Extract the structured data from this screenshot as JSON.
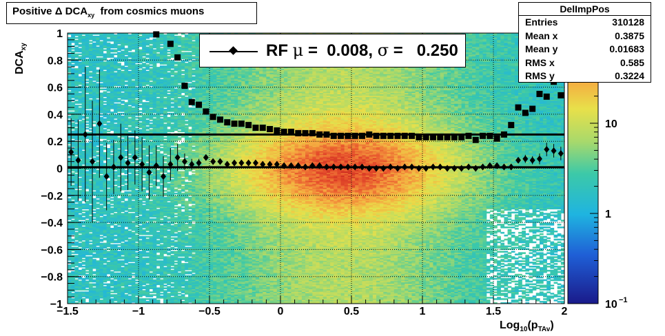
{
  "title": "Positive Δ DCA",
  "title_sub": "xy",
  "title_rest": "  from cosmics muons",
  "stats": {
    "name": "DelImpPos",
    "rows": [
      {
        "key": "Entries",
        "value": "310128"
      },
      {
        "key": "Mean x",
        "value": "0.3875"
      },
      {
        "key": "Mean y",
        "value": "0.01683"
      },
      {
        "key": "RMS x",
        "value": "0.585"
      },
      {
        "key": "RMS y",
        "value": "0.3224"
      }
    ]
  },
  "legend": {
    "prefix": "RF ",
    "mu": "μ",
    "mid": " =  0.008, ",
    "sigma": "σ",
    "suffix": " =   0.250"
  },
  "colors": {
    "mean_marker": "#000000",
    "rms_marker": "#000000"
  },
  "chart_data": {
    "type": "heatmap",
    "title": "Positive Δ DCA_xy  from cosmics muons",
    "xlabel_main": "Log",
    "xlabel_sub": "10",
    "xlabel_rest": "(p",
    "xlabel_sub2": "TAv",
    "xlabel_end": ")",
    "ylabel_main": "DCA",
    "ylabel_sub": "xy",
    "xlim": [
      -1.5,
      2
    ],
    "ylim": [
      -1,
      1
    ],
    "zscale": "log",
    "zlim": [
      0.1,
      100
    ],
    "x_ticks": [
      "−1.5",
      "−1",
      "−0.5",
      "0",
      "0.5",
      "1",
      "1.5",
      "2"
    ],
    "x_tick_values": [
      -1.5,
      -1,
      -0.5,
      0,
      0.5,
      1,
      1.5,
      2
    ],
    "y_ticks": [
      "1",
      "0.8",
      "0.6",
      "0.4",
      "0.2",
      "0",
      "−0.2",
      "−0.4",
      "−0.6",
      "−0.8",
      "−1"
    ],
    "y_tick_values": [
      1,
      0.8,
      0.6,
      0.4,
      0.2,
      0,
      -0.2,
      -0.4,
      -0.6,
      -0.8,
      -1
    ],
    "z_ticks": [
      {
        "label": "10",
        "sup": "",
        "value": 10
      },
      {
        "label": "1",
        "sup": "",
        "value": 1
      },
      {
        "label": "10",
        "sup": "−1",
        "value": 0.1
      }
    ],
    "grid": true,
    "reference_lines": [
      0.25,
      0.008
    ],
    "series": [
      {
        "marker": "square",
        "x": [
          -0.875,
          -0.775,
          -0.725,
          -0.675,
          -0.625,
          -0.575,
          -0.525,
          -0.475,
          -0.425,
          -0.375,
          -0.325,
          -0.275,
          -0.225,
          -0.175,
          -0.125,
          -0.075,
          -0.025,
          0.025,
          0.075,
          0.125,
          0.175,
          0.225,
          0.275,
          0.325,
          0.375,
          0.425,
          0.475,
          0.525,
          0.575,
          0.625,
          0.675,
          0.725,
          0.775,
          0.825,
          0.875,
          0.925,
          0.975,
          1.025,
          1.075,
          1.125,
          1.175,
          1.225,
          1.275,
          1.325,
          1.375,
          1.425,
          1.475,
          1.525,
          1.575,
          1.625,
          1.675,
          1.725,
          1.775,
          1.825,
          1.875,
          1.925,
          1.975
        ],
        "y": [
          0.99,
          0.92,
          0.82,
          0.61,
          0.49,
          0.47,
          0.42,
          0.38,
          0.36,
          0.34,
          0.33,
          0.33,
          0.32,
          0.3,
          0.3,
          0.29,
          0.28,
          0.27,
          0.27,
          0.26,
          0.26,
          0.26,
          0.25,
          0.25,
          0.24,
          0.24,
          0.24,
          0.24,
          0.24,
          0.25,
          0.24,
          0.24,
          0.24,
          0.24,
          0.24,
          0.24,
          0.23,
          0.23,
          0.23,
          0.23,
          0.23,
          0.23,
          0.23,
          0.24,
          0.21,
          0.24,
          0.24,
          0.22,
          0.25,
          0.32,
          0.45,
          0.41,
          0.44,
          0.55,
          0.53,
          0.64,
          0.54
        ]
      },
      {
        "marker": "diamond",
        "x": [
          -1.475,
          -1.425,
          -1.375,
          -1.325,
          -1.275,
          -1.225,
          -1.175,
          -1.125,
          -1.075,
          -1.025,
          -0.975,
          -0.925,
          -0.875,
          -0.825,
          -0.775,
          -0.725,
          -0.675,
          -0.625,
          -0.575,
          -0.525,
          -0.475,
          -0.425,
          -0.375,
          -0.325,
          -0.275,
          -0.225,
          -0.175,
          -0.125,
          -0.075,
          -0.025,
          0.025,
          0.075,
          0.125,
          0.175,
          0.225,
          0.275,
          0.325,
          0.375,
          0.425,
          0.475,
          0.525,
          0.575,
          0.625,
          0.675,
          0.725,
          0.775,
          0.825,
          0.875,
          0.925,
          0.975,
          1.025,
          1.075,
          1.125,
          1.175,
          1.225,
          1.275,
          1.325,
          1.375,
          1.425,
          1.475,
          1.525,
          1.575,
          1.625,
          1.675,
          1.725,
          1.775,
          1.825,
          1.875,
          1.925,
          1.975
        ],
        "y": [
          0.12,
          0.06,
          0.25,
          0.05,
          0.33,
          -0.06,
          0.01,
          0.08,
          0.04,
          0.08,
          0.03,
          -0.03,
          0.02,
          -0.06,
          0.03,
          0.08,
          0.05,
          0.03,
          0.04,
          0.08,
          0.05,
          0.05,
          0.03,
          0.04,
          0.04,
          0.04,
          0.04,
          0.03,
          0.03,
          0.03,
          0.02,
          0.02,
          0.02,
          0.01,
          0.02,
          0.02,
          0.01,
          0.01,
          0.01,
          0.01,
          0.01,
          0.01,
          0.0,
          0.0,
          0.0,
          0.01,
          0.0,
          0.01,
          0.01,
          0.0,
          0.0,
          0.01,
          0.01,
          0.0,
          0.0,
          0.0,
          0.01,
          0.0,
          0.01,
          0.02,
          0.02,
          0.01,
          0.01,
          0.06,
          0.07,
          0.06,
          0.07,
          0.14,
          0.13,
          0.11
        ],
        "yerr": [
          0.25,
          0.3,
          0.5,
          0.45,
          0.4,
          0.25,
          0.2,
          0.25,
          0.2,
          0.2,
          0.2,
          0.2,
          0.15,
          0.15,
          0.12,
          0.1,
          0.06,
          0.04,
          0.03,
          0.02,
          0.02,
          0.01,
          0.01,
          0.01,
          0.01,
          0.01,
          0.01,
          0.01,
          0.01,
          0.01,
          0.01,
          0.01,
          0.01,
          0.01,
          0.01,
          0.01,
          0.01,
          0.01,
          0.01,
          0.01,
          0.01,
          0.01,
          0.01,
          0.01,
          0.01,
          0.01,
          0.01,
          0.01,
          0.01,
          0.01,
          0.01,
          0.01,
          0.01,
          0.01,
          0.01,
          0.01,
          0.01,
          0.01,
          0.01,
          0.01,
          0.01,
          0.02,
          0.02,
          0.02,
          0.03,
          0.03,
          0.04,
          0.05,
          0.05,
          0.05
        ]
      }
    ]
  }
}
